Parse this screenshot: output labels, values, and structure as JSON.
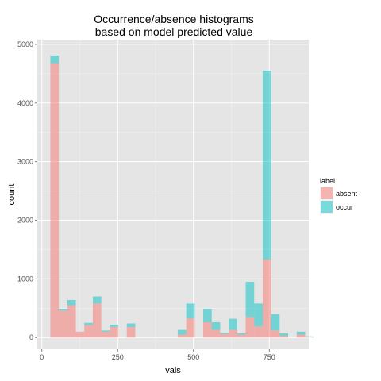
{
  "chart_data": {
    "type": "bar",
    "stacked": true,
    "title_line1": "Occurrence/absence histograms",
    "title_line2": "based on model predicted value",
    "xlabel": "vals",
    "ylabel": "count",
    "xlim": [
      -15,
      880
    ],
    "ylim": [
      -200,
      5080
    ],
    "x_ticks": [
      0,
      250,
      500,
      750
    ],
    "y_ticks": [
      0,
      1000,
      2000,
      3000,
      4000,
      5000
    ],
    "bin_width": 28,
    "grid": true,
    "legend_placement": "right",
    "legend_title": "label",
    "series": [
      {
        "name": "absent",
        "color": "#f8766d",
        "bins": [
          {
            "x0": 28,
            "value": 4680
          },
          {
            "x0": 56,
            "value": 460
          },
          {
            "x0": 84,
            "value": 550
          },
          {
            "x0": 112,
            "value": 100
          },
          {
            "x0": 140,
            "value": 210
          },
          {
            "x0": 168,
            "value": 580
          },
          {
            "x0": 196,
            "value": 100
          },
          {
            "x0": 224,
            "value": 180
          },
          {
            "x0": 280,
            "value": 180
          },
          {
            "x0": 448,
            "value": 50
          },
          {
            "x0": 476,
            "value": 330
          },
          {
            "x0": 532,
            "value": 260
          },
          {
            "x0": 560,
            "value": 130
          },
          {
            "x0": 588,
            "value": 60
          },
          {
            "x0": 616,
            "value": 130
          },
          {
            "x0": 644,
            "value": 50
          },
          {
            "x0": 672,
            "value": 350
          },
          {
            "x0": 700,
            "value": 190
          },
          {
            "x0": 728,
            "value": 1330
          },
          {
            "x0": 756,
            "value": 120
          },
          {
            "x0": 784,
            "value": 30
          },
          {
            "x0": 840,
            "value": 50
          },
          {
            "x0": 868,
            "value": 10
          }
        ]
      },
      {
        "name": "occur",
        "color": "#00bfc4",
        "bins": [
          {
            "x0": 28,
            "value": 130
          },
          {
            "x0": 56,
            "value": 30
          },
          {
            "x0": 84,
            "value": 90
          },
          {
            "x0": 112,
            "value": 0
          },
          {
            "x0": 140,
            "value": 40
          },
          {
            "x0": 168,
            "value": 120
          },
          {
            "x0": 196,
            "value": 20
          },
          {
            "x0": 224,
            "value": 40
          },
          {
            "x0": 280,
            "value": 60
          },
          {
            "x0": 448,
            "value": 80
          },
          {
            "x0": 476,
            "value": 250
          },
          {
            "x0": 532,
            "value": 230
          },
          {
            "x0": 560,
            "value": 130
          },
          {
            "x0": 588,
            "value": 20
          },
          {
            "x0": 616,
            "value": 190
          },
          {
            "x0": 644,
            "value": 20
          },
          {
            "x0": 672,
            "value": 600
          },
          {
            "x0": 700,
            "value": 390
          },
          {
            "x0": 728,
            "value": 3220
          },
          {
            "x0": 756,
            "value": 280
          },
          {
            "x0": 784,
            "value": 40
          },
          {
            "x0": 840,
            "value": 50
          },
          {
            "x0": 868,
            "value": 10
          }
        ]
      }
    ]
  }
}
